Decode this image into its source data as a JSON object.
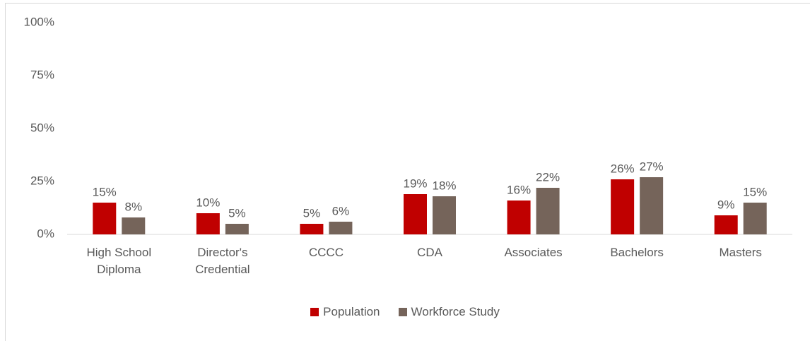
{
  "chart_data": {
    "type": "bar",
    "categories": [
      "High School Diploma",
      "Director's Credential",
      "CCCC",
      "CDA",
      "Associates",
      "Bachelors",
      "Masters"
    ],
    "series": [
      {
        "name": "Population",
        "color": "#c00000",
        "values": [
          15,
          10,
          5,
          19,
          16,
          26,
          9
        ],
        "value_labels": [
          "15%",
          "10%",
          "5%",
          "19%",
          "16%",
          "26%",
          "9%"
        ]
      },
      {
        "name": "Workforce Study",
        "color": "#75645a",
        "values": [
          8,
          5,
          6,
          18,
          22,
          27,
          15
        ],
        "value_labels": [
          "8%",
          "5%",
          "6%",
          "18%",
          "22%",
          "27%",
          "15%"
        ]
      }
    ],
    "ylim": [
      0,
      100
    ],
    "yticks": [
      {
        "value": 0,
        "label": "0%"
      },
      {
        "value": 25,
        "label": "25%"
      },
      {
        "value": 50,
        "label": "50%"
      },
      {
        "value": 75,
        "label": "75%"
      },
      {
        "value": 100,
        "label": "100%"
      }
    ],
    "grid": false,
    "legend": "bottom"
  }
}
